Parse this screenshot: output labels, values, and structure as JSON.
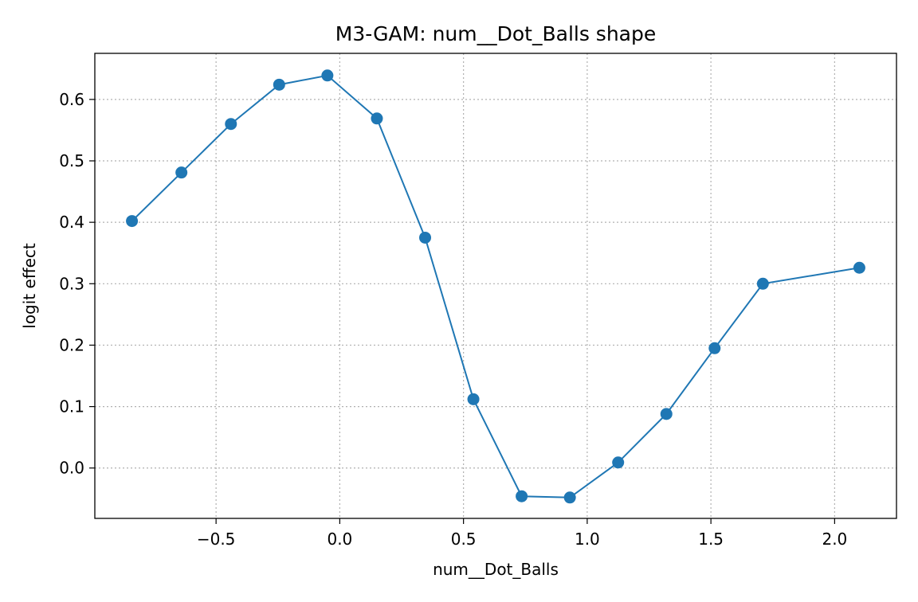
{
  "chart_data": {
    "type": "line",
    "title": "M3-GAM: num__Dot_Balls shape",
    "xlabel": "num__Dot_Balls",
    "ylabel": "logit effect",
    "xlim": [
      -0.99,
      2.25
    ],
    "ylim": [
      -0.082,
      0.675
    ],
    "x_ticks": [
      -0.5,
      0.0,
      0.5,
      1.0,
      1.5,
      2.0
    ],
    "x_tick_labels": [
      "−0.5",
      "0.0",
      "0.5",
      "1.0",
      "1.5",
      "2.0"
    ],
    "y_ticks": [
      0.0,
      0.1,
      0.2,
      0.3,
      0.4,
      0.5,
      0.6
    ],
    "y_tick_labels": [
      "0.0",
      "0.1",
      "0.2",
      "0.3",
      "0.4",
      "0.5",
      "0.6"
    ],
    "grid": true,
    "color": "#1f77b4",
    "series": [
      {
        "x": [
          -0.84,
          -0.64,
          -0.44,
          -0.245,
          -0.05,
          0.15,
          0.345,
          0.54,
          0.735,
          0.93,
          1.125,
          1.32,
          1.515,
          1.71,
          2.1
        ],
        "y": [
          0.402,
          0.481,
          0.56,
          0.624,
          0.639,
          0.569,
          0.375,
          0.112,
          -0.046,
          -0.048,
          0.009,
          0.088,
          0.195,
          0.3,
          0.326
        ]
      }
    ]
  }
}
